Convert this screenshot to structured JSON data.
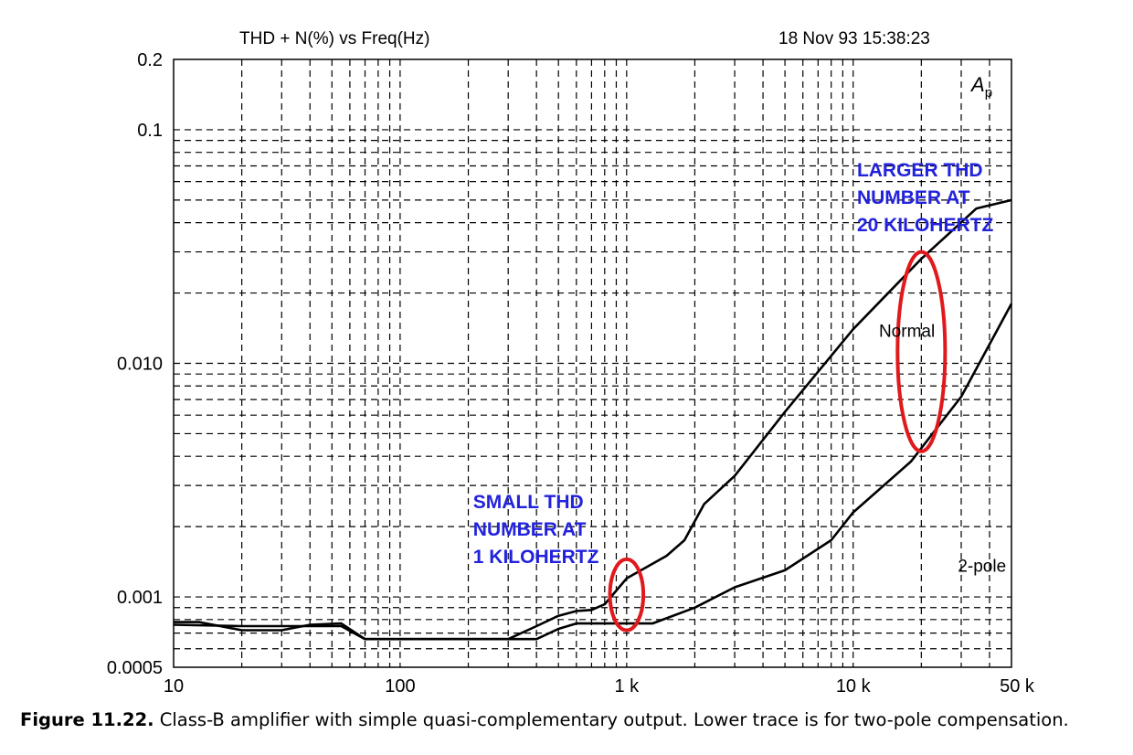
{
  "chart_data": {
    "type": "line",
    "title": "THD + N(%) vs Freq(Hz)",
    "timestamp": "18 Nov 93 15:38:23",
    "badge": "A",
    "badge_sub": "p",
    "x_scale": "log",
    "y_scale": "log",
    "xlim": [
      10,
      50000
    ],
    "ylim": [
      0.0005,
      0.2
    ],
    "grid": true,
    "x_ticks": [
      {
        "value": 10,
        "label": "10"
      },
      {
        "value": 100,
        "label": "100"
      },
      {
        "value": 1000,
        "label": "1 k"
      },
      {
        "value": 10000,
        "label": "10 k"
      },
      {
        "value": 50000,
        "label": "50 k"
      }
    ],
    "y_ticks": [
      {
        "value": 0.2,
        "label": "0.2"
      },
      {
        "value": 0.1,
        "label": "0.1"
      },
      {
        "value": 0.01,
        "label": "0.010"
      },
      {
        "value": 0.001,
        "label": "0.001"
      },
      {
        "value": 0.0005,
        "label": "0.0005"
      }
    ],
    "series": [
      {
        "name": "Normal",
        "label_at": [
          13000,
          0.013
        ],
        "points": [
          [
            10,
            0.00078
          ],
          [
            13,
            0.00078
          ],
          [
            20,
            0.00072
          ],
          [
            30,
            0.00072
          ],
          [
            40,
            0.00076
          ],
          [
            55,
            0.00077
          ],
          [
            70,
            0.00066
          ],
          [
            100,
            0.00066
          ],
          [
            200,
            0.00066
          ],
          [
            300,
            0.00066
          ],
          [
            400,
            0.00075
          ],
          [
            500,
            0.00083
          ],
          [
            600,
            0.00087
          ],
          [
            700,
            0.00088
          ],
          [
            800,
            0.00093
          ],
          [
            1000,
            0.0012
          ],
          [
            1500,
            0.0015
          ],
          [
            1800,
            0.00175
          ],
          [
            2200,
            0.0025
          ],
          [
            3000,
            0.0033
          ],
          [
            5000,
            0.0062
          ],
          [
            10000,
            0.014
          ],
          [
            20000,
            0.028
          ],
          [
            35000,
            0.046
          ],
          [
            50000,
            0.05
          ]
        ]
      },
      {
        "name": "2-pole",
        "label_at": [
          29000,
          0.00128
        ],
        "points": [
          [
            10,
            0.00076
          ],
          [
            20,
            0.00075
          ],
          [
            30,
            0.00075
          ],
          [
            40,
            0.00075
          ],
          [
            55,
            0.00075
          ],
          [
            70,
            0.00066
          ],
          [
            100,
            0.00066
          ],
          [
            200,
            0.00066
          ],
          [
            300,
            0.00066
          ],
          [
            400,
            0.00066
          ],
          [
            500,
            0.00073
          ],
          [
            600,
            0.00077
          ],
          [
            800,
            0.00077
          ],
          [
            1000,
            0.00077
          ],
          [
            1300,
            0.00077
          ],
          [
            2000,
            0.0009
          ],
          [
            3000,
            0.0011
          ],
          [
            5000,
            0.0013
          ],
          [
            8000,
            0.00175
          ],
          [
            10000,
            0.0023
          ],
          [
            18000,
            0.0038
          ],
          [
            30000,
            0.0072
          ],
          [
            50000,
            0.018
          ]
        ]
      }
    ],
    "annotations": [
      {
        "lines": [
          "LARGER THD",
          "NUMBER AT",
          "20 KILOHERTZ"
        ],
        "color": "#2222dd",
        "anchor": [
          10400,
          0.063
        ]
      },
      {
        "lines": [
          "SMALL THD",
          "NUMBER AT",
          "1 KILOHERTZ"
        ],
        "color": "#2222dd",
        "anchor": [
          210,
          0.0024
        ]
      }
    ],
    "highlight_ellipses": [
      {
        "center": [
          1000,
          0.00095
        ],
        "x_span": [
          840,
          1180
        ],
        "y_span": [
          0.00072,
          0.00145
        ],
        "color": "#e0191c"
      },
      {
        "center": [
          20000,
          0.011
        ],
        "x_span": [
          15600,
          25300
        ],
        "y_span": [
          0.0042,
          0.03
        ],
        "color": "#e0191c"
      }
    ]
  },
  "caption": {
    "label": "Figure 11.22.",
    "text": " Class-B amplifier with simple quasi-complementary output. Lower trace is for two-pole compensation."
  }
}
